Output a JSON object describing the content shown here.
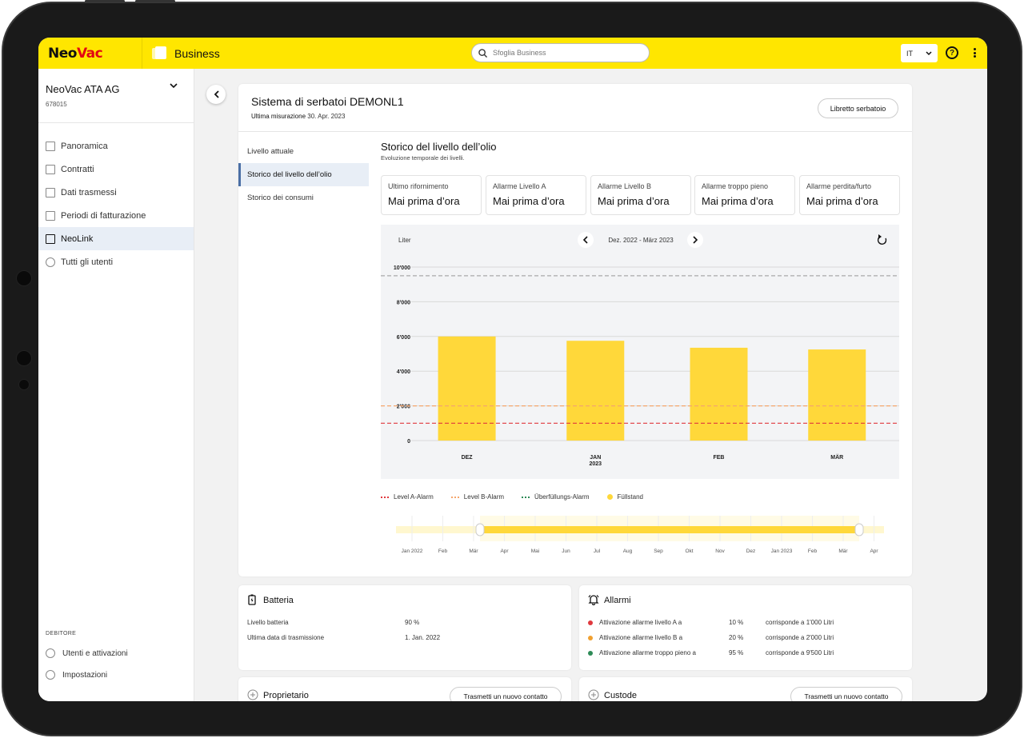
{
  "app": {
    "logo_left": "Neo",
    "logo_right": "Vac",
    "product": "Business"
  },
  "search": {
    "placeholder": "Sfoglia Business"
  },
  "topbar": {
    "language": "IT",
    "help": "?"
  },
  "sidebar": {
    "org_name": "NeoVac ATA AG",
    "org_number": "678015",
    "items": [
      {
        "label": "Panoramica"
      },
      {
        "label": "Contratti"
      },
      {
        "label": "Dati trasmessi"
      },
      {
        "label": "Periodi di fatturazione"
      },
      {
        "label": "NeoLink"
      },
      {
        "label": "Tutti gli utenti"
      }
    ],
    "section_label": "DEBITORE",
    "footer": [
      {
        "label": "Utenti e attivazioni"
      },
      {
        "label": "Impostazioni"
      }
    ]
  },
  "header": {
    "title": "Sistema di serbatoi DEMONL1",
    "measure_label": "Ultima misurazione",
    "measure_date": "30. Apr. 2023",
    "libretto_button": "Libretto serbatoio"
  },
  "tabs": [
    {
      "label": "Livello attuale"
    },
    {
      "label": "Storico del livello dell’olio"
    },
    {
      "label": "Storico dei consumi"
    }
  ],
  "section": {
    "title": "Storico del livello dell’olio",
    "subtitle": "Evoluzione temporale dei livelli."
  },
  "stats": [
    {
      "label": "Ultimo rifornimento",
      "value": "Mai prima d’ora"
    },
    {
      "label": "Allarme Livello A",
      "value": "Mai prima d’ora"
    },
    {
      "label": "Allarme Livello B",
      "value": "Mai prima d’ora"
    },
    {
      "label": "Allarme troppo pieno",
      "value": "Mai prima d’ora"
    },
    {
      "label": "Allarme perdita/furto",
      "value": "Mai prima d’ora"
    }
  ],
  "chart_data": {
    "type": "bar",
    "ylabel": "Liter",
    "range_label": "Dez. 2022 - März 2023",
    "categories": [
      "DEZ",
      "JAN",
      "FEB",
      "MÄR"
    ],
    "category_sub": [
      "",
      "2023",
      "",
      ""
    ],
    "values": [
      6000,
      5750,
      5350,
      5250
    ],
    "ylim": [
      0,
      10000
    ],
    "yticks": [
      "0",
      "2'000",
      "4'000",
      "6'000",
      "8'000",
      "10'000"
    ],
    "thresholds": [
      {
        "name": "Level A-Alarm",
        "value": 1000,
        "color": "#e0393e"
      },
      {
        "name": "Level B-Alarm",
        "value": 2000,
        "color": "#f5a66c"
      },
      {
        "name": "Überfüllungs-Alarm",
        "value": 9500,
        "color": "#aaaaaa"
      }
    ],
    "legend": [
      {
        "name": "Level A-Alarm",
        "color": "#e0393e",
        "kind": "dashed"
      },
      {
        "name": "Level B-Alarm",
        "color": "#f5a66c",
        "kind": "dashed"
      },
      {
        "name": "Überfüllungs-Alarm",
        "color": "#2e8b57",
        "kind": "dashed"
      },
      {
        "name": "Füllstand",
        "color": "#ffd83a",
        "kind": "dot"
      }
    ],
    "bar_color": "#ffd83a",
    "grid": true
  },
  "navigator": {
    "ticks": [
      "Jan 2022",
      "Feb",
      "Mär",
      "Apr",
      "Mai",
      "Jun",
      "Jul",
      "Aug",
      "Sep",
      "Okt",
      "Nov",
      "Dez",
      "Jan 2023",
      "Feb",
      "Mär",
      "Apr"
    ]
  },
  "battery": {
    "title": "Batteria",
    "rows": [
      {
        "label": "Livello batteria",
        "value": "90 %"
      },
      {
        "label": "Ultima data di trasmissione",
        "value": "1. Jan. 2022"
      }
    ]
  },
  "alarms": {
    "title": "Allarmi",
    "rows": [
      {
        "label": "Attivazione allarme livello A a",
        "pct": "10 %",
        "desc": "corrisponde a 1'000 Litri",
        "color": "#e0393e"
      },
      {
        "label": "Attivazione allarme livello B a",
        "pct": "20 %",
        "desc": "corrisponde a 2'000 Litri",
        "color": "#f0a030"
      },
      {
        "label": "Attivazione allarme troppo pieno a",
        "pct": "95 %",
        "desc": "corrisponde a 9'500 Litri",
        "color": "#2e8b57"
      }
    ]
  },
  "owner": {
    "title": "Proprietario",
    "button": "Trasmetti un nuovo contatto"
  },
  "custodian": {
    "title": "Custode",
    "button": "Trasmetti un nuovo contatto"
  }
}
